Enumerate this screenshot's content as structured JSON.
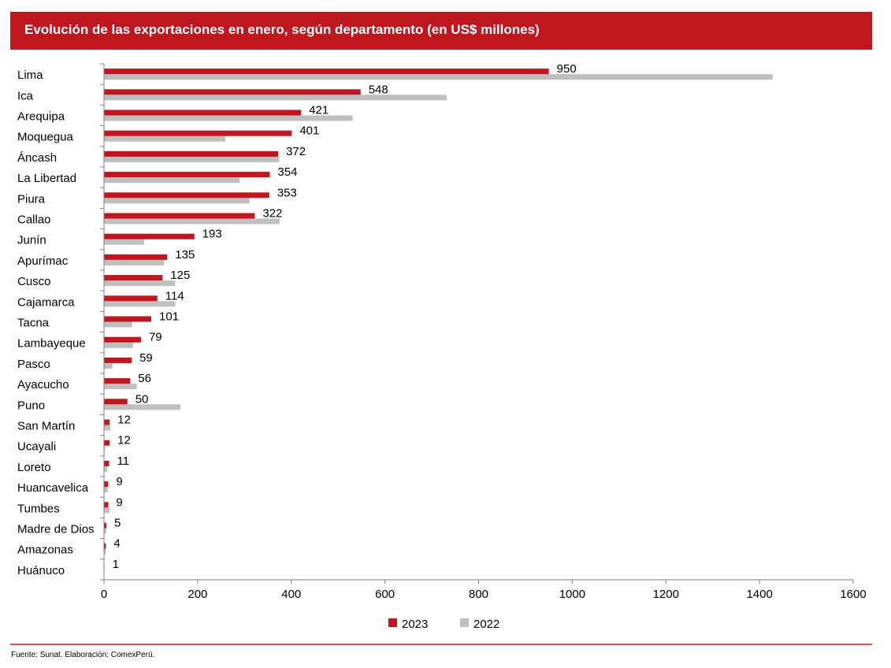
{
  "header": {
    "title": "Evolución de las exportaciones en enero, según departamento (en US$ millones)"
  },
  "footer": {
    "source": "Fuente: Sunat. Elaboración: ComexPerú."
  },
  "colors": {
    "accent": "#c0161f",
    "series_2023": "#c0161f",
    "series_2022": "#bfbfbf"
  },
  "chart_data": {
    "type": "bar",
    "orientation": "horizontal",
    "categories": [
      "Lima",
      "Ica",
      "Arequipa",
      "Moquegua",
      "Áncash",
      "La Libertad",
      "Piura",
      "Callao",
      "Junín",
      "Apurímac",
      "Cusco",
      "Cajamarca",
      "Tacna",
      "Lambayeque",
      "Pasco",
      "Ayacucho",
      "Puno",
      "San Martín",
      "Ucayali",
      "Loreto",
      "Huancavelica",
      "Tumbes",
      "Madre de Dios",
      "Amazonas",
      "Huánuco"
    ],
    "series": [
      {
        "name": "2023",
        "color": "#c0161f",
        "labels_shown": true,
        "values": [
          950,
          548,
          421,
          401,
          372,
          354,
          353,
          322,
          193,
          135,
          125,
          114,
          101,
          79,
          59,
          56,
          50,
          12,
          12,
          11,
          9,
          9,
          5,
          4,
          1
        ]
      },
      {
        "name": "2022",
        "color": "#bfbfbf",
        "labels_shown": false,
        "values": [
          1428,
          732,
          531,
          259,
          374,
          290,
          311,
          375,
          86,
          128,
          152,
          152,
          60,
          62,
          18,
          70,
          163,
          14,
          2,
          7,
          8,
          12,
          5,
          4,
          1
        ]
      }
    ],
    "xlim": [
      0,
      1600
    ],
    "xticks": [
      "0",
      "200",
      "400",
      "600",
      "800",
      "1000",
      "1200",
      "1400",
      "1600"
    ],
    "xlabel": "",
    "ylabel": "",
    "grid": false,
    "legend_position": "bottom"
  }
}
